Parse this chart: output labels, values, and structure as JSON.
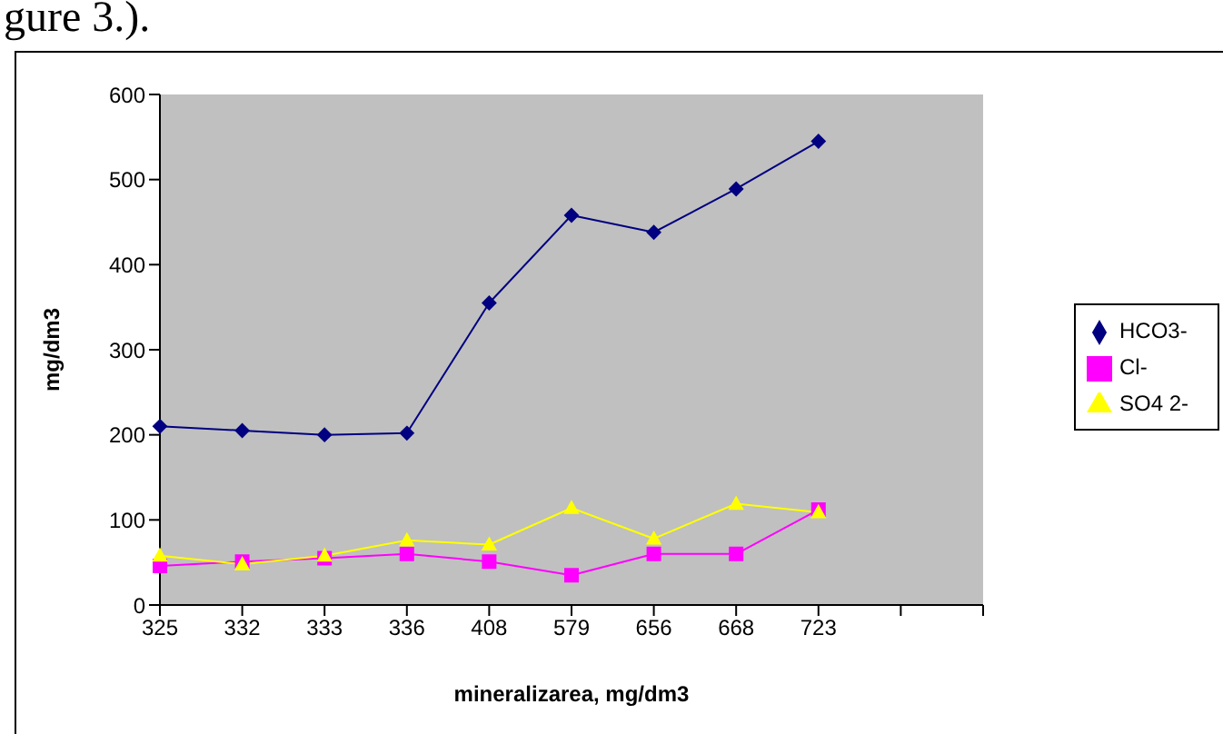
{
  "chart_data": {
    "type": "line",
    "xlabel": "mineralizarea, mg/dm3",
    "ylabel": "mg/dm3",
    "annotations": [
      "gure 3.)."
    ],
    "categories": [
      "325",
      "332",
      "333",
      "336",
      "408",
      "579",
      "656",
      "668",
      "723",
      null,
      null
    ],
    "series": [
      {
        "name": "HCO3-",
        "color": "#000080",
        "marker": "diamond",
        "values": [
          210,
          205,
          200,
          202,
          355,
          458,
          438,
          489,
          545,
          null,
          null
        ]
      },
      {
        "name": "Cl-",
        "color": "#ff00ff",
        "marker": "square",
        "values": [
          46,
          51,
          55,
          60,
          51,
          35,
          60,
          60,
          112,
          null,
          null
        ]
      },
      {
        "name": "SO4 2-",
        "color": "#ffff00",
        "marker": "triangle",
        "values": [
          58,
          48,
          58,
          76,
          71,
          114,
          78,
          119,
          109,
          null,
          null
        ]
      }
    ],
    "ylim": [
      0,
      600
    ],
    "yticks": [
      0,
      100,
      200,
      300,
      400,
      500,
      600
    ],
    "legend": "right"
  }
}
